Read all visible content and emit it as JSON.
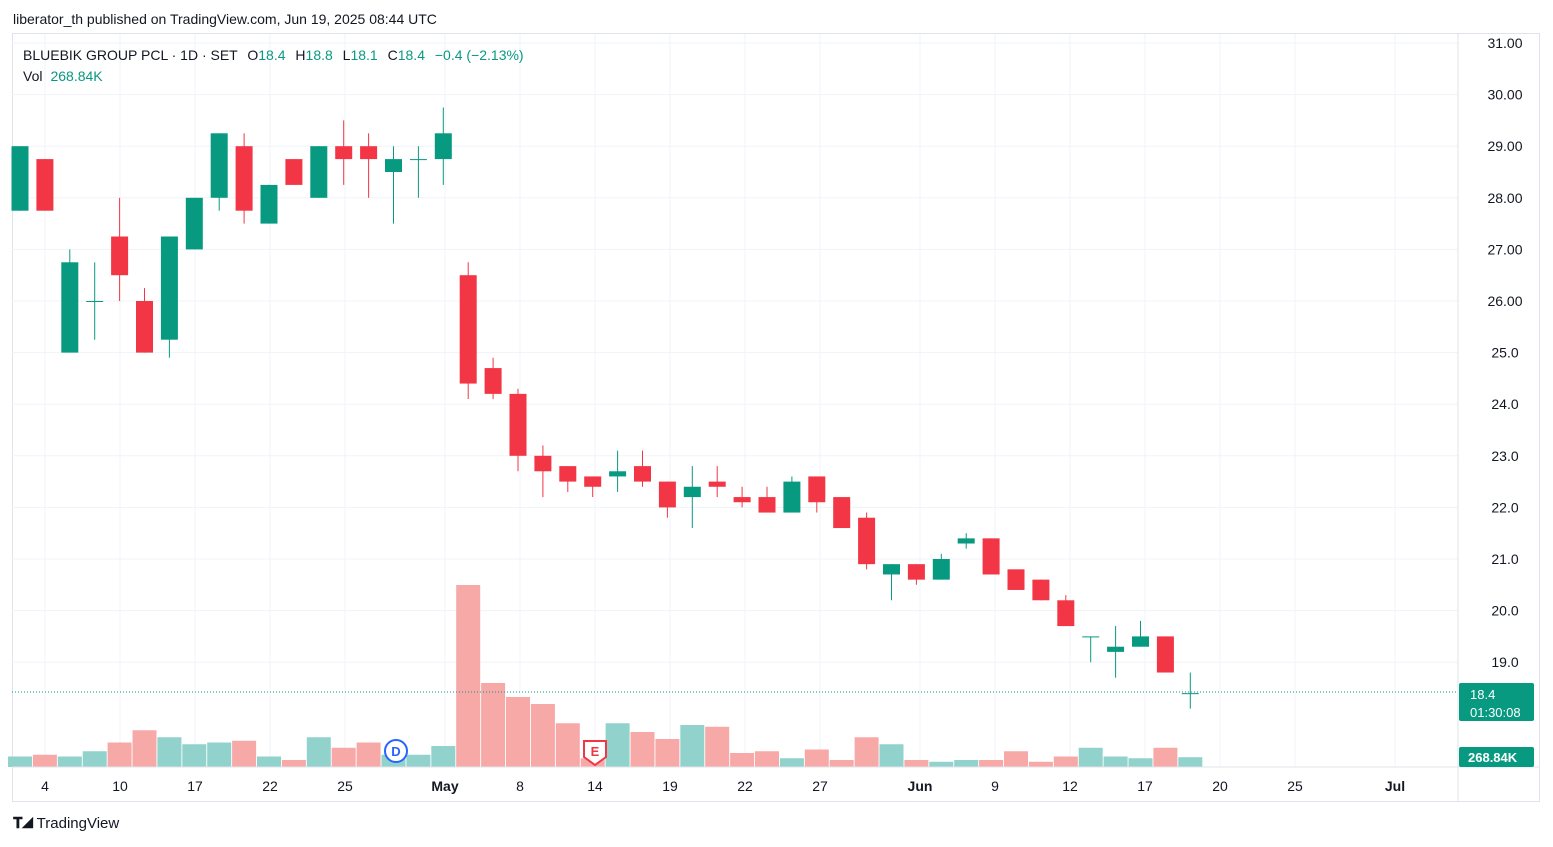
{
  "publisher_line": "liberator_th published on TradingView.com, Jun 19, 2025 08:44 UTC",
  "legend": {
    "symbol": "BLUEBIK GROUP PCL · 1D · SET",
    "o_label": "O",
    "o_value": "18.4",
    "h_label": "H",
    "h_value": "18.8",
    "l_label": "L",
    "l_value": "18.1",
    "c_label": "C",
    "c_value": "18.4",
    "change": "−0.4 (−2.13%)",
    "vol_label": "Vol",
    "vol_value": "268.84K"
  },
  "price_tag": {
    "price": "18.4",
    "countdown": "01:30:08"
  },
  "volume_tag": "268.84K",
  "colors": {
    "up": "#089981",
    "down": "#f23645",
    "vol_up": "#92d2cc",
    "vol_down": "#f7a9a7",
    "grid": "#f0f3fa"
  },
  "footer_brand": "TradingView",
  "chart_data": {
    "type": "candlestick",
    "ylim": [
      17.6,
      31.0
    ],
    "y_ticks": [
      "31.00",
      "30.00",
      "29.00",
      "28.00",
      "27.00",
      "26.00",
      "25.0",
      "24.0",
      "23.0",
      "22.0",
      "21.0",
      "20.0",
      "19.0"
    ],
    "x_tick_labels": [
      "4",
      "10",
      "17",
      "22",
      "25",
      "May",
      "8",
      "14",
      "19",
      "22",
      "27",
      "Jun",
      "9",
      "12",
      "17",
      "20",
      "25",
      "Jul"
    ],
    "markers": [
      {
        "label": "D",
        "type": "dividend"
      },
      {
        "label": "E",
        "type": "earnings"
      }
    ],
    "candles": [
      {
        "o": 27.75,
        "h": 29.0,
        "l": 27.75,
        "c": 29.0,
        "v": 0.3
      },
      {
        "o": 28.75,
        "h": 28.75,
        "l": 27.75,
        "c": 27.75,
        "v": 0.35
      },
      {
        "o": 25.0,
        "h": 27.0,
        "l": 25.0,
        "c": 26.75,
        "v": 0.3
      },
      {
        "o": 26.0,
        "h": 26.75,
        "l": 25.25,
        "c": 26.0,
        "v": 0.45
      },
      {
        "o": 27.25,
        "h": 28.0,
        "l": 26.0,
        "c": 26.5,
        "v": 0.7
      },
      {
        "o": 26.0,
        "h": 26.25,
        "l": 25.0,
        "c": 25.0,
        "v": 1.05
      },
      {
        "o": 25.25,
        "h": 27.25,
        "l": 24.9,
        "c": 27.25,
        "v": 0.85
      },
      {
        "o": 27.0,
        "h": 28.0,
        "l": 27.0,
        "c": 28.0,
        "v": 0.65
      },
      {
        "o": 28.0,
        "h": 29.25,
        "l": 27.75,
        "c": 29.25,
        "v": 0.7
      },
      {
        "o": 29.0,
        "h": 29.25,
        "l": 27.5,
        "c": 27.75,
        "v": 0.75
      },
      {
        "o": 27.5,
        "h": 28.25,
        "l": 27.5,
        "c": 28.25,
        "v": 0.3
      },
      {
        "o": 28.75,
        "h": 28.75,
        "l": 28.25,
        "c": 28.25,
        "v": 0.2
      },
      {
        "o": 28.0,
        "h": 29.0,
        "l": 28.0,
        "c": 29.0,
        "v": 0.85
      },
      {
        "o": 29.0,
        "h": 29.5,
        "l": 28.25,
        "c": 28.75,
        "v": 0.55
      },
      {
        "o": 29.0,
        "h": 29.25,
        "l": 28.0,
        "c": 28.75,
        "v": 0.7
      },
      {
        "o": 28.5,
        "h": 29.0,
        "l": 27.5,
        "c": 28.75,
        "v": 0.35
      },
      {
        "o": 28.75,
        "h": 29.0,
        "l": 28.0,
        "c": 28.75,
        "v": 0.35
      },
      {
        "o": 28.75,
        "h": 29.75,
        "l": 28.25,
        "c": 29.25,
        "v": 0.6
      },
      {
        "o": 26.5,
        "h": 26.75,
        "l": 24.1,
        "c": 24.4,
        "v": 5.2
      },
      {
        "o": 24.7,
        "h": 24.9,
        "l": 24.1,
        "c": 24.2,
        "v": 2.4
      },
      {
        "o": 24.2,
        "h": 24.3,
        "l": 22.7,
        "c": 23.0,
        "v": 2.0
      },
      {
        "o": 23.0,
        "h": 23.2,
        "l": 22.2,
        "c": 22.7,
        "v": 1.8
      },
      {
        "o": 22.8,
        "h": 22.8,
        "l": 22.3,
        "c": 22.5,
        "v": 1.25
      },
      {
        "o": 22.6,
        "h": 22.6,
        "l": 22.2,
        "c": 22.4,
        "v": 0.25
      },
      {
        "o": 22.6,
        "h": 23.1,
        "l": 22.3,
        "c": 22.7,
        "v": 1.25
      },
      {
        "o": 22.8,
        "h": 23.1,
        "l": 22.4,
        "c": 22.5,
        "v": 1.0
      },
      {
        "o": 22.5,
        "h": 22.5,
        "l": 21.8,
        "c": 22.0,
        "v": 0.8
      },
      {
        "o": 22.2,
        "h": 22.8,
        "l": 21.6,
        "c": 22.4,
        "v": 1.2
      },
      {
        "o": 22.5,
        "h": 22.8,
        "l": 22.2,
        "c": 22.4,
        "v": 1.15
      },
      {
        "o": 22.2,
        "h": 22.4,
        "l": 22.0,
        "c": 22.1,
        "v": 0.4
      },
      {
        "o": 22.2,
        "h": 22.4,
        "l": 21.9,
        "c": 21.9,
        "v": 0.45
      },
      {
        "o": 21.9,
        "h": 22.6,
        "l": 21.9,
        "c": 22.5,
        "v": 0.25
      },
      {
        "o": 22.6,
        "h": 22.6,
        "l": 21.9,
        "c": 22.1,
        "v": 0.5
      },
      {
        "o": 22.2,
        "h": 22.2,
        "l": 21.6,
        "c": 21.6,
        "v": 0.2
      },
      {
        "o": 21.8,
        "h": 21.9,
        "l": 20.8,
        "c": 20.9,
        "v": 0.85
      },
      {
        "o": 20.7,
        "h": 20.9,
        "l": 20.2,
        "c": 20.9,
        "v": 0.65
      },
      {
        "o": 20.9,
        "h": 20.9,
        "l": 20.5,
        "c": 20.6,
        "v": 0.2
      },
      {
        "o": 20.6,
        "h": 21.1,
        "l": 20.6,
        "c": 21.0,
        "v": 0.15
      },
      {
        "o": 21.3,
        "h": 21.5,
        "l": 21.2,
        "c": 21.4,
        "v": 0.2
      },
      {
        "o": 21.4,
        "h": 21.4,
        "l": 20.7,
        "c": 20.7,
        "v": 0.2
      },
      {
        "o": 20.8,
        "h": 20.8,
        "l": 20.4,
        "c": 20.4,
        "v": 0.45
      },
      {
        "o": 20.6,
        "h": 20.6,
        "l": 20.2,
        "c": 20.2,
        "v": 0.15
      },
      {
        "o": 20.2,
        "h": 20.3,
        "l": 19.7,
        "c": 19.7,
        "v": 0.3
      },
      {
        "o": 19.5,
        "h": 19.5,
        "l": 19.0,
        "c": 19.5,
        "v": 0.55
      },
      {
        "o": 19.2,
        "h": 19.7,
        "l": 18.7,
        "c": 19.3,
        "v": 0.3
      },
      {
        "o": 19.3,
        "h": 19.8,
        "l": 19.3,
        "c": 19.5,
        "v": 0.25
      },
      {
        "o": 19.5,
        "h": 19.5,
        "l": 18.8,
        "c": 18.8,
        "v": 0.55
      },
      {
        "o": 18.4,
        "h": 18.8,
        "l": 18.1,
        "c": 18.4,
        "v": 0.28
      }
    ]
  }
}
